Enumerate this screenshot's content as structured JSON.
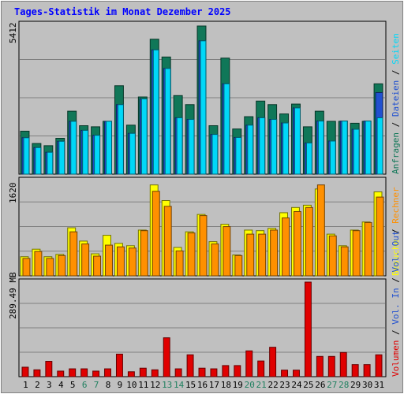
{
  "title": "Tages-Statistik im Monat Dezember 2025",
  "colors": {
    "background": "#c0c0c0",
    "title": "#0000ff",
    "anfragen": "#107758",
    "dateien": "#2050d0",
    "seiten": "#00d8f8",
    "besuche": "#ffff00",
    "rechner": "#ff9000",
    "volumen": "#e00000",
    "weekday": "#000000",
    "weekend": "#208060"
  },
  "legend_right": {
    "top": [
      {
        "label": "Anfragen",
        "color": "#107758"
      },
      {
        "label": "Dateien",
        "color": "#2050d0"
      },
      {
        "label": "Seiten",
        "color": "#00d8f8"
      }
    ],
    "middle": [
      {
        "label": "Besuche",
        "color": "#ffff00"
      },
      {
        "label": "Rechner",
        "color": "#ff9000"
      }
    ],
    "bottom": [
      {
        "label": "Volumen",
        "color": "#e00000"
      },
      {
        "label": "Vol. In",
        "color": "#2050d0"
      },
      {
        "label": "Vol. Out",
        "color": "#2050d0"
      }
    ]
  },
  "axis_labels": {
    "top_max": "5412",
    "middle_max": "1620",
    "bottom_max": "289.49 MB"
  },
  "chart_data": [
    {
      "type": "bar",
      "title": "",
      "categories": [
        "1",
        "2",
        "3",
        "4",
        "5",
        "6",
        "7",
        "8",
        "9",
        "10",
        "11",
        "12",
        "13",
        "14",
        "15",
        "16",
        "17",
        "18",
        "19",
        "20",
        "21",
        "22",
        "23",
        "24",
        "25",
        "26",
        "27",
        "28",
        "29",
        "30",
        "31"
      ],
      "weekend_days": [
        "6",
        "7",
        "13",
        "14",
        "20",
        "21",
        "27",
        "28"
      ],
      "ylim": [
        0,
        5412
      ],
      "series": [
        {
          "name": "Anfragen",
          "values": [
            1570,
            1120,
            1040,
            1310,
            2300,
            1770,
            1730,
            1930,
            3230,
            1790,
            2820,
            4930,
            4280,
            2870,
            2540,
            5412,
            1770,
            4240,
            1650,
            2100,
            2670,
            2540,
            2200,
            2560,
            1730,
            2300,
            1930,
            1930,
            1860,
            1930,
            3300
          ]
        },
        {
          "name": "Dateien",
          "values": [
            1330,
            970,
            800,
            1200,
            1930,
            1600,
            1420,
            1930,
            2540,
            1490,
            2750,
            4540,
            3860,
            2060,
            2000,
            4870,
            1450,
            3300,
            1340,
            1790,
            2060,
            2000,
            1870,
            2420,
            1140,
            1940,
            1210,
            1940,
            1640,
            1940,
            2980
          ]
        },
        {
          "name": "Seiten",
          "values": [
            1330,
            970,
            800,
            1200,
            1930,
            1600,
            1420,
            1930,
            2540,
            1490,
            2750,
            4540,
            3860,
            2060,
            2000,
            4870,
            1450,
            3300,
            1340,
            1790,
            2060,
            2000,
            1870,
            2420,
            1140,
            1940,
            1210,
            1940,
            1640,
            1940,
            2060
          ]
        }
      ]
    },
    {
      "type": "bar",
      "title": "",
      "categories": [
        "1",
        "2",
        "3",
        "4",
        "5",
        "6",
        "7",
        "8",
        "9",
        "10",
        "11",
        "12",
        "13",
        "14",
        "15",
        "16",
        "17",
        "18",
        "19",
        "20",
        "21",
        "22",
        "23",
        "24",
        "25",
        "26",
        "27",
        "28",
        "29",
        "30",
        "31"
      ],
      "ylim": [
        0,
        1620
      ],
      "series": [
        {
          "name": "Besuche",
          "values": [
            330,
            460,
            330,
            370,
            830,
            600,
            380,
            700,
            560,
            520,
            790,
            1570,
            1300,
            490,
            760,
            1060,
            590,
            890,
            360,
            790,
            780,
            820,
            1090,
            1180,
            1220,
            1500,
            720,
            520,
            790,
            930,
            1450
          ]
        },
        {
          "name": "Rechner",
          "values": [
            300,
            420,
            300,
            350,
            760,
            550,
            340,
            530,
            500,
            480,
            780,
            1460,
            1200,
            430,
            740,
            1040,
            550,
            850,
            350,
            720,
            720,
            790,
            1000,
            1110,
            1180,
            1570,
            690,
            500,
            780,
            920,
            1360
          ]
        }
      ]
    },
    {
      "type": "bar",
      "title": "",
      "categories": [
        "1",
        "2",
        "3",
        "4",
        "5",
        "6",
        "7",
        "8",
        "9",
        "10",
        "11",
        "12",
        "13",
        "14",
        "15",
        "16",
        "17",
        "18",
        "19",
        "20",
        "21",
        "22",
        "23",
        "24",
        "25",
        "26",
        "27",
        "28",
        "29",
        "30",
        "31"
      ],
      "ylabel": "MB",
      "ylim": [
        0,
        289.49
      ],
      "series": [
        {
          "name": "Volumen",
          "values": [
            29,
            21,
            47,
            17,
            24,
            24,
            17,
            24,
            69,
            15,
            26,
            21,
            119,
            24,
            67,
            26,
            24,
            34,
            34,
            79,
            48,
            90,
            20,
            20,
            289.49,
            62,
            62,
            74,
            37,
            37,
            67
          ]
        }
      ]
    }
  ]
}
